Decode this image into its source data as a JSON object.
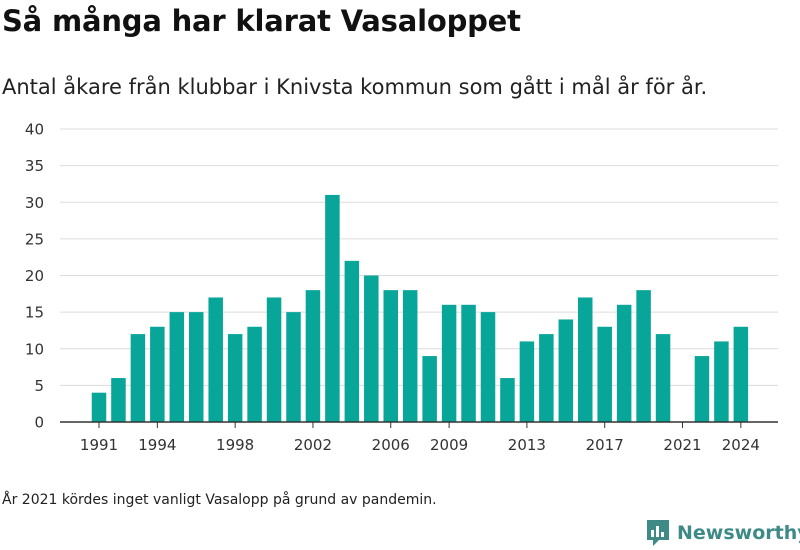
{
  "title": "Så många har klarat Vasaloppet",
  "subtitle": "Antal åkare från klubbar i Knivsta kommun som gått i mål år för år.",
  "footnote": "År 2021 kördes inget vanligt Vasalopp på grund av pandemin.",
  "brand": {
    "name": "Newsworthy",
    "icon": "newsworthy-logo-icon"
  },
  "colors": {
    "bar": "#08a599",
    "grid": "#dcdcdc",
    "axis": "#333333",
    "brand": "#3d8a86"
  },
  "chart_data": {
    "type": "bar",
    "title": "Så många har klarat Vasaloppet",
    "subtitle": "Antal åkare från klubbar i Knivsta kommun som gått i mål år för år.",
    "xlabel": "",
    "ylabel": "",
    "ylim": [
      0,
      40
    ],
    "yticks": [
      0,
      5,
      10,
      15,
      20,
      25,
      30,
      35,
      40
    ],
    "xticks": [
      1991,
      1994,
      1998,
      2002,
      2006,
      2009,
      2013,
      2017,
      2021,
      2024
    ],
    "grid": true,
    "categories": [
      1991,
      1992,
      1993,
      1994,
      1995,
      1996,
      1997,
      1998,
      1999,
      2000,
      2001,
      2002,
      2003,
      2004,
      2005,
      2006,
      2007,
      2008,
      2009,
      2010,
      2011,
      2012,
      2013,
      2014,
      2015,
      2016,
      2017,
      2018,
      2019,
      2020,
      2021,
      2022,
      2023,
      2024
    ],
    "values": [
      4,
      6,
      12,
      13,
      15,
      15,
      17,
      12,
      13,
      17,
      15,
      18,
      31,
      22,
      20,
      18,
      18,
      9,
      16,
      16,
      15,
      6,
      11,
      12,
      14,
      17,
      13,
      16,
      18,
      12,
      0,
      9,
      11,
      13
    ]
  }
}
